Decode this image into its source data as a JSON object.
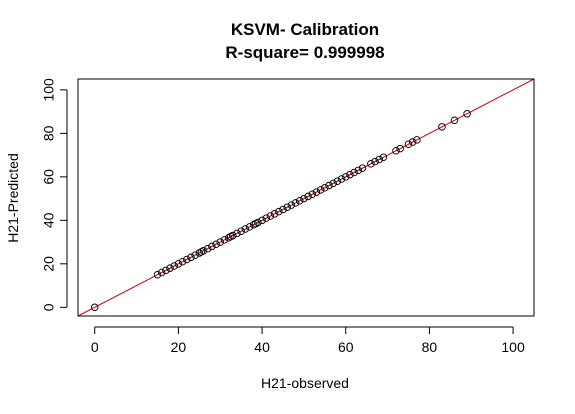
{
  "chart_data": {
    "type": "scatter",
    "title": "KSVM- Calibration",
    "subtitle": "R-square= 0.999998",
    "xlabel": "H21-observed",
    "ylabel": "H21-Predicted",
    "xlim": [
      -4,
      105
    ],
    "ylim": [
      -4,
      105
    ],
    "xticks": [
      0,
      20,
      40,
      60,
      80,
      100
    ],
    "yticks": [
      0,
      20,
      40,
      60,
      80,
      100
    ],
    "grid": false,
    "legend": "none",
    "point_color": "#000000",
    "line_color": "#cc0000",
    "reference_line": {
      "intercept": 0,
      "slope": 1
    },
    "series": [
      {
        "x": [
          0,
          15,
          16,
          17,
          18,
          19,
          20,
          21,
          22,
          23,
          24,
          25,
          25.5,
          26,
          27,
          28,
          29,
          30,
          31,
          32,
          32.5,
          33,
          34,
          35,
          36,
          37,
          38,
          38.5,
          39,
          40,
          41,
          42,
          43,
          44,
          45,
          46,
          47,
          48,
          49,
          50,
          51,
          52,
          53,
          54,
          55,
          56,
          57,
          58,
          59,
          60,
          61,
          62,
          63,
          64,
          66,
          67,
          68,
          69,
          72,
          73,
          75,
          76,
          77,
          83,
          86,
          89
        ],
        "y": [
          0,
          15,
          16,
          17,
          18,
          19,
          20,
          21,
          22,
          23,
          24,
          25,
          25.5,
          26,
          27,
          28,
          29,
          30,
          31,
          32,
          32.5,
          33,
          34,
          35,
          36,
          37,
          38,
          38.5,
          39,
          40,
          41,
          42,
          43,
          44,
          45,
          46,
          47,
          48,
          49,
          50,
          51,
          52,
          53,
          54,
          55,
          56,
          57,
          58,
          59,
          60,
          61,
          62,
          63,
          64,
          66,
          67,
          68,
          69,
          72,
          73,
          75,
          76,
          77,
          83,
          86,
          89
        ]
      }
    ]
  }
}
